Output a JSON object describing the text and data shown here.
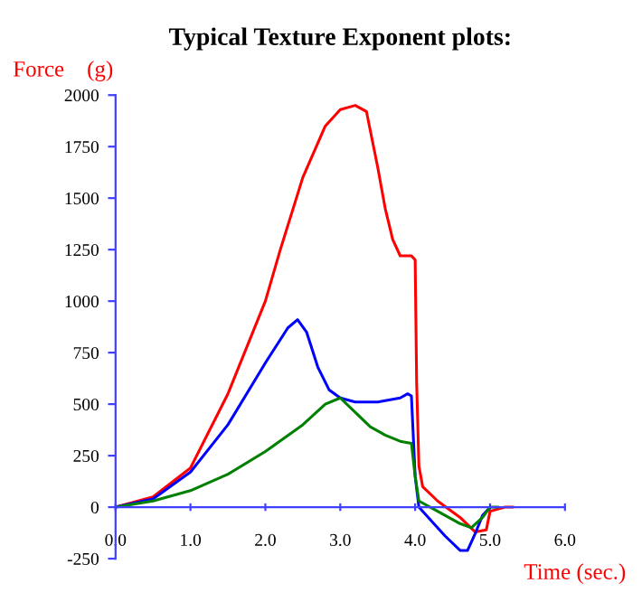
{
  "chart_data": {
    "type": "line",
    "title": "Typical Texture Exponent plots:",
    "xlabel": "Time (sec.)",
    "ylabel": "Force    (g)",
    "xlim": [
      0,
      6
    ],
    "xticks": [
      {
        "value": 0,
        "label": "0.0"
      },
      {
        "value": 1,
        "label": "1.0"
      },
      {
        "value": 2,
        "label": "2.0"
      },
      {
        "value": 3,
        "label": "3.0"
      },
      {
        "value": 4,
        "label": "4.0"
      },
      {
        "value": 5,
        "label": "5.0"
      },
      {
        "value": 6,
        "label": "6.0"
      }
    ],
    "ylim": [
      -250,
      2000
    ],
    "yticks": [
      -250,
      0,
      250,
      500,
      750,
      1000,
      1250,
      1500,
      1750,
      2000
    ],
    "grid": false,
    "legend": false,
    "series": [
      {
        "color": "#ff0000",
        "x": [
          0,
          0.5,
          1.0,
          1.5,
          2.0,
          2.2,
          2.5,
          2.8,
          3.0,
          3.2,
          3.35,
          3.5,
          3.6,
          3.7,
          3.8,
          3.95,
          4.0,
          4.02,
          4.05,
          4.1,
          4.3,
          4.6,
          4.8,
          4.95,
          5.0,
          5.2,
          5.3
        ],
        "values": [
          0,
          50,
          190,
          550,
          1000,
          1250,
          1600,
          1850,
          1930,
          1950,
          1920,
          1650,
          1450,
          1300,
          1220,
          1220,
          1200,
          600,
          200,
          100,
          30,
          -50,
          -120,
          -110,
          -20,
          0,
          0
        ]
      },
      {
        "color": "#0000ff",
        "x": [
          0,
          0.5,
          1.0,
          1.5,
          2.0,
          2.3,
          2.43,
          2.55,
          2.7,
          2.85,
          3.0,
          3.2,
          3.5,
          3.8,
          3.9,
          3.95,
          4.0,
          4.05,
          4.2,
          4.4,
          4.6,
          4.7,
          4.8,
          4.9,
          5.0
        ],
        "values": [
          0,
          40,
          170,
          400,
          700,
          870,
          910,
          850,
          680,
          570,
          530,
          510,
          510,
          530,
          550,
          540,
          150,
          0,
          -60,
          -140,
          -210,
          -210,
          -130,
          -40,
          0
        ]
      },
      {
        "color": "#008000",
        "x": [
          0,
          0.5,
          1.0,
          1.5,
          2.0,
          2.5,
          2.8,
          3.0,
          3.2,
          3.4,
          3.6,
          3.8,
          3.95,
          4.0,
          4.05,
          4.3,
          4.6,
          4.75,
          4.9,
          5.0,
          5.1
        ],
        "values": [
          0,
          30,
          80,
          160,
          270,
          400,
          500,
          530,
          460,
          390,
          350,
          320,
          310,
          150,
          30,
          -20,
          -80,
          -100,
          -50,
          0,
          0
        ]
      }
    ]
  }
}
